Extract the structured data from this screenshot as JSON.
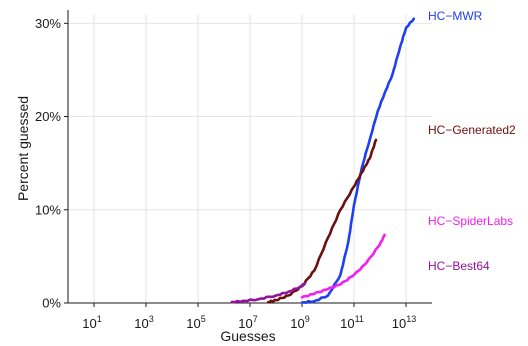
{
  "chart_data": {
    "type": "line",
    "title": "",
    "xlabel": "Guesses",
    "ylabel": "Percent guessed",
    "x_scale": "log10",
    "xlim": [
      1,
      100000000000000
    ],
    "ylim": [
      0,
      31
    ],
    "x_ticks": [
      {
        "value": 10,
        "base": "10",
        "exp": "1"
      },
      {
        "value": 1000,
        "base": "10",
        "exp": "3"
      },
      {
        "value": 100000,
        "base": "10",
        "exp": "5"
      },
      {
        "value": 10000000,
        "base": "10",
        "exp": "7"
      },
      {
        "value": 1000000000,
        "base": "10",
        "exp": "9"
      },
      {
        "value": 100000000000,
        "base": "10",
        "exp": "11"
      },
      {
        "value": 10000000000000,
        "base": "10",
        "exp": "13"
      }
    ],
    "y_ticks": [
      {
        "value": 0,
        "label": "0%"
      },
      {
        "value": 10,
        "label": "10%"
      },
      {
        "value": 20,
        "label": "20%"
      },
      {
        "value": 30,
        "label": "30%"
      }
    ],
    "grid": true,
    "legend": "direct-labels-right",
    "series": [
      {
        "name": "HC−MWR",
        "color": "#1f3ff0",
        "x": [
          1000000000,
          3000000000,
          10000000000,
          30000000000,
          60000000000,
          100000000000,
          200000000000,
          400000000000,
          800000000000,
          1500000000000,
          3000000000000,
          6000000000000,
          10000000000000,
          20000000000000
        ],
        "y": [
          0.05,
          0.2,
          0.8,
          3.0,
          6.5,
          10.5,
          14.5,
          17.5,
          20.5,
          22.5,
          24.5,
          27.5,
          29.5,
          30.5
        ]
      },
      {
        "name": "HC−Generated2",
        "color": "#6b0f0f",
        "x": [
          50000000,
          100000000,
          300000000,
          1000000000,
          3000000000,
          10000000000,
          30000000000,
          100000000000,
          200000000000,
          400000000000,
          700000000000
        ],
        "y": [
          0.1,
          0.3,
          0.8,
          1.8,
          3.5,
          7.0,
          10.0,
          12.5,
          14.0,
          15.5,
          17.5
        ]
      },
      {
        "name": "HC−SpiderLabs",
        "color": "#f11ff1",
        "x": [
          1000000000,
          3000000000,
          10000000000,
          30000000000,
          100000000000,
          300000000000,
          1000000000000,
          1500000000000
        ],
        "y": [
          0.6,
          1.0,
          1.5,
          2.0,
          3.0,
          4.3,
          6.3,
          7.3
        ]
      },
      {
        "name": "HC−Best64",
        "color": "#93139d",
        "x": [
          2000000,
          5000000,
          20000000,
          100000000,
          300000000,
          800000000,
          1300000000
        ],
        "y": [
          0.1,
          0.2,
          0.4,
          0.8,
          1.2,
          1.7,
          2.1
        ]
      }
    ]
  }
}
